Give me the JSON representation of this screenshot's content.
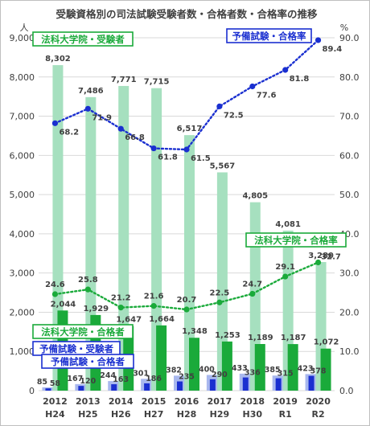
{
  "chart_data": {
    "type": "bar",
    "title": "受験資格別の司法試験受験者数・合格者数・合格率の推移",
    "y_left_unit": "人",
    "y_right_unit": "%",
    "ylim_left": [
      0,
      9000
    ],
    "ylim_right": [
      0,
      90
    ],
    "y_left_ticks": [
      "0",
      "1,000",
      "2,000",
      "3,000",
      "4,000",
      "5,000",
      "6,000",
      "7,000",
      "8,000",
      "9,000"
    ],
    "y_right_ticks": [
      "0.0",
      "10.0",
      "20.0",
      "30.0",
      "40.0",
      "50.0",
      "60.0",
      "70.0",
      "80.0",
      "90.0"
    ],
    "categories": [
      {
        "year": "2012",
        "era": "H24"
      },
      {
        "year": "2013",
        "era": "H25"
      },
      {
        "year": "2014",
        "era": "H26"
      },
      {
        "year": "2015",
        "era": "H27"
      },
      {
        "year": "2016",
        "era": "H28"
      },
      {
        "year": "2017",
        "era": "H29"
      },
      {
        "year": "2018",
        "era": "H30"
      },
      {
        "year": "2019",
        "era": "R1"
      },
      {
        "year": "2020",
        "era": "R2"
      }
    ],
    "series": [
      {
        "name": "法科大学院・受験者",
        "kind": "bar",
        "axis": "left",
        "color": "#a6e0bf",
        "values": [
          8302,
          7486,
          7771,
          7715,
          6517,
          5567,
          4805,
          4081,
          3280
        ],
        "labels": [
          "8,302",
          "7,486",
          "7,771",
          "7,715",
          "6,517",
          "5,567",
          "4,805",
          "4,081",
          "3,280"
        ]
      },
      {
        "name": "法科大学院・合格者",
        "kind": "bar",
        "axis": "left",
        "color": "#1aaa3a",
        "values": [
          2044,
          1929,
          1647,
          1664,
          1348,
          1253,
          1189,
          1187,
          1072
        ],
        "labels": [
          "2,044",
          "1,929",
          "1,647",
          "1,664",
          "1,348",
          "1,253",
          "1,189",
          "1,187",
          "1,072"
        ]
      },
      {
        "name": "予備試験・受験者",
        "kind": "bar",
        "axis": "left",
        "color": "#a9b8ee",
        "values": [
          85,
          167,
          244,
          301,
          382,
          400,
          433,
          385,
          423
        ],
        "labels": [
          "85",
          "167",
          "244",
          "301",
          "382",
          "400",
          "433",
          "385",
          "423"
        ]
      },
      {
        "name": "予備試験・合格者",
        "kind": "bar",
        "axis": "left",
        "color": "#1a2fd0",
        "values": [
          58,
          120,
          163,
          186,
          235,
          290,
          336,
          315,
          378
        ],
        "labels": [
          "58",
          "120",
          "163",
          "186",
          "235",
          "290",
          "336",
          "315",
          "378"
        ]
      },
      {
        "name": "法科大学院・合格率",
        "kind": "line",
        "axis": "right",
        "color": "#1aaa3a",
        "values": [
          24.6,
          25.8,
          21.2,
          21.6,
          20.7,
          22.5,
          24.7,
          29.1,
          32.7
        ],
        "labels": [
          "24.6",
          "25.8",
          "21.2",
          "21.6",
          "20.7",
          "22.5",
          "24.7",
          "29.1",
          "32.7"
        ]
      },
      {
        "name": "予備試験・合格率",
        "kind": "line",
        "axis": "right",
        "color": "#1a2fd0",
        "values": [
          68.2,
          71.9,
          66.8,
          61.8,
          61.5,
          72.5,
          77.6,
          81.8,
          89.4
        ],
        "labels": [
          "68.2",
          "71.9",
          "66.8",
          "61.8",
          "61.5",
          "72.5",
          "77.6",
          "81.8",
          "89.4"
        ]
      }
    ]
  },
  "colors": {
    "frame": "#bfbfbf",
    "grid": "#d9d9d9",
    "text": "#404040",
    "green": "#1aaa3a",
    "blue": "#1a2fd0"
  }
}
